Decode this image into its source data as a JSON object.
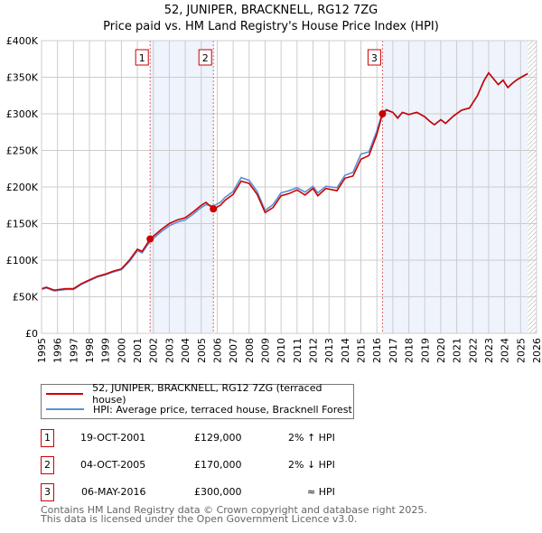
{
  "chart_data": {
    "type": "line",
    "title": "52, JUNIPER, BRACKNELL, RG12 7ZG",
    "subtitle": "Price paid vs. HM Land Registry's House Price Index (HPI)",
    "xlim": [
      1995,
      2026
    ],
    "ylim": [
      0,
      400000
    ],
    "yticks": [
      0,
      50000,
      100000,
      150000,
      200000,
      250000,
      300000,
      350000,
      400000
    ],
    "ytick_labels": [
      "£0",
      "£50K",
      "£100K",
      "£150K",
      "£200K",
      "£250K",
      "£300K",
      "£350K",
      "£400K"
    ],
    "xticks": [
      "1995",
      "1996",
      "1997",
      "1998",
      "1999",
      "2000",
      "2001",
      "2002",
      "2003",
      "2004",
      "2005",
      "2006",
      "2007",
      "2008",
      "2009",
      "2010",
      "2011",
      "2012",
      "2013",
      "2014",
      "2015",
      "2016",
      "2017",
      "2018",
      "2019",
      "2020",
      "2021",
      "2022",
      "2023",
      "2024",
      "2025",
      "2026"
    ],
    "grid": true,
    "shaded_periods": [
      [
        2001.8,
        2005.76
      ],
      [
        2016.35,
        2025.45
      ]
    ],
    "forecast_hatch_from": 2025.45,
    "series": [
      {
        "name": "52, JUNIPER, BRACKNELL, RG12 7ZG (terraced house)",
        "color": "#cc0000",
        "x": [
          1995,
          1995.3,
          1995.8,
          1996.5,
          1997,
          1997.5,
          1998,
          1998.5,
          1999,
          1999.5,
          2000,
          2000.5,
          2001,
          2001.3,
          2001.8,
          2002.5,
          2003,
          2003.5,
          2004,
          2004.5,
          2005,
          2005.3,
          2005.76,
          2006.2,
          2006.5,
          2007,
          2007.5,
          2008,
          2008.5,
          2009,
          2009.5,
          2010,
          2010.5,
          2011,
          2011.5,
          2012,
          2012.3,
          2012.8,
          2013.5,
          2014,
          2014.5,
          2015,
          2015.5,
          2016,
          2016.35,
          2016.6,
          2017,
          2017.3,
          2017.6,
          2018,
          2018.5,
          2019,
          2019.3,
          2019.6,
          2020,
          2020.3,
          2020.8,
          2021.3,
          2021.8,
          2022.3,
          2022.7,
          2023,
          2023.3,
          2023.6,
          2023.9,
          2024.2,
          2024.5,
          2024.8,
          2025.2,
          2025.45
        ],
        "y": [
          61,
          63,
          59,
          61,
          61,
          68,
          73,
          78,
          81,
          85,
          88,
          100,
          115,
          112,
          129,
          142,
          150,
          155,
          158,
          166,
          175,
          179,
          170,
          175,
          182,
          190,
          208,
          205,
          190,
          165,
          172,
          188,
          191,
          196,
          189,
          198,
          188,
          198,
          195,
          212,
          215,
          238,
          243,
          272,
          300,
          305,
          302,
          294,
          302,
          299,
          302,
          296,
          290,
          285,
          292,
          287,
          297,
          305,
          308,
          325,
          345,
          356,
          348,
          340,
          346,
          336,
          342,
          347,
          352,
          355
        ]
      },
      {
        "name": "HPI: Average price, terraced house, Bracknell Forest",
        "color": "#5b8fd4",
        "x": [
          1995,
          1995.3,
          1995.8,
          1996.5,
          1997,
          1997.5,
          1998,
          1998.5,
          1999,
          1999.5,
          2000,
          2000.5,
          2001,
          2001.3,
          2001.8,
          2002.5,
          2003,
          2003.5,
          2004,
          2004.5,
          2005,
          2005.3,
          2005.76,
          2006.2,
          2006.5,
          2007,
          2007.5,
          2008,
          2008.5,
          2009,
          2009.5,
          2010,
          2010.5,
          2011,
          2011.5,
          2012,
          2012.3,
          2012.8,
          2013.5,
          2014,
          2014.5,
          2015,
          2015.5,
          2016,
          2016.35,
          2016.6,
          2017,
          2017.3,
          2017.6,
          2018,
          2018.5,
          2019,
          2019.3,
          2019.6,
          2020,
          2020.3,
          2020.8,
          2021.3,
          2021.8,
          2022.3,
          2022.7,
          2023,
          2023.3,
          2023.6,
          2023.9,
          2024.2,
          2024.5,
          2024.8,
          2025.2,
          2025.45
        ],
        "y": [
          60,
          62,
          58,
          60,
          60,
          67,
          72,
          77,
          80,
          84,
          87,
          98,
          113,
          110,
          126,
          139,
          147,
          152,
          155,
          163,
          172,
          176,
          174,
          179,
          186,
          194,
          213,
          209,
          194,
          168,
          176,
          192,
          195,
          199,
          193,
          201,
          192,
          201,
          199,
          216,
          220,
          245,
          248,
          277,
          302,
          306,
          302,
          295,
          302,
          299,
          302,
          296,
          290,
          285,
          292,
          287,
          297,
          305,
          308,
          325,
          345,
          356,
          348,
          340,
          346,
          336,
          342,
          347,
          352,
          355
        ]
      }
    ],
    "sales": [
      {
        "n": "1",
        "x": 2001.8,
        "y": 129000
      },
      {
        "n": "2",
        "x": 2005.76,
        "y": 170000
      },
      {
        "n": "3",
        "x": 2016.35,
        "y": 300000
      }
    ]
  },
  "legend": [
    "52, JUNIPER, BRACKNELL, RG12 7ZG (terraced house)",
    "HPI: Average price, terraced house, Bracknell Forest"
  ],
  "transactions": [
    {
      "n": "1",
      "date": "19-OCT-2001",
      "price": "£129,000",
      "hpi": "2% ↑ HPI"
    },
    {
      "n": "2",
      "date": "04-OCT-2005",
      "price": "£170,000",
      "hpi": "2% ↓ HPI"
    },
    {
      "n": "3",
      "date": "06-MAY-2016",
      "price": "£300,000",
      "hpi": "≈ HPI"
    }
  ],
  "footer": [
    "Contains HM Land Registry data © Crown copyright and database right 2025.",
    "This data is licensed under the Open Government Licence v3.0."
  ]
}
